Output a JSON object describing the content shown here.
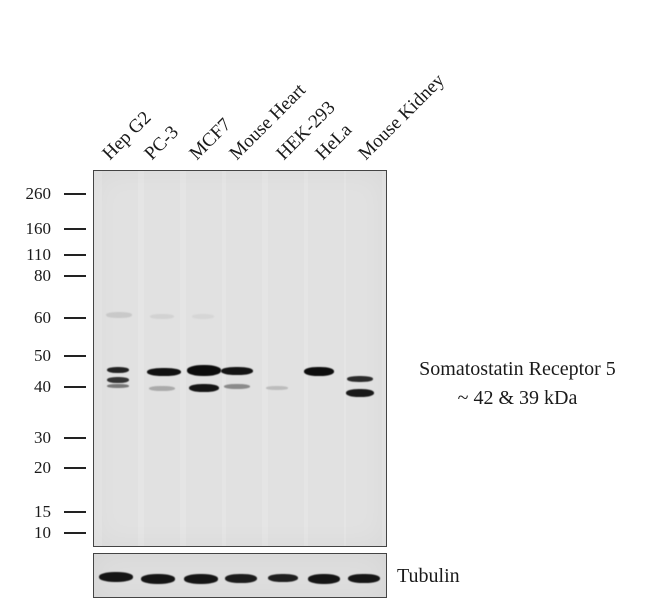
{
  "lanes": [
    "Hep G2",
    "PC-3",
    "MCF7",
    "Mouse Heart",
    "HEK-293",
    "HeLa",
    "Mouse Kidney"
  ],
  "markers": [
    "260",
    "160",
    "110",
    "80",
    "60",
    "50",
    "40",
    "30",
    "20",
    "15",
    "10"
  ],
  "target": {
    "name": "Somatostatin Receptor 5",
    "size": "~ 42 & 39 kDa"
  },
  "loading_control": "Tubulin"
}
